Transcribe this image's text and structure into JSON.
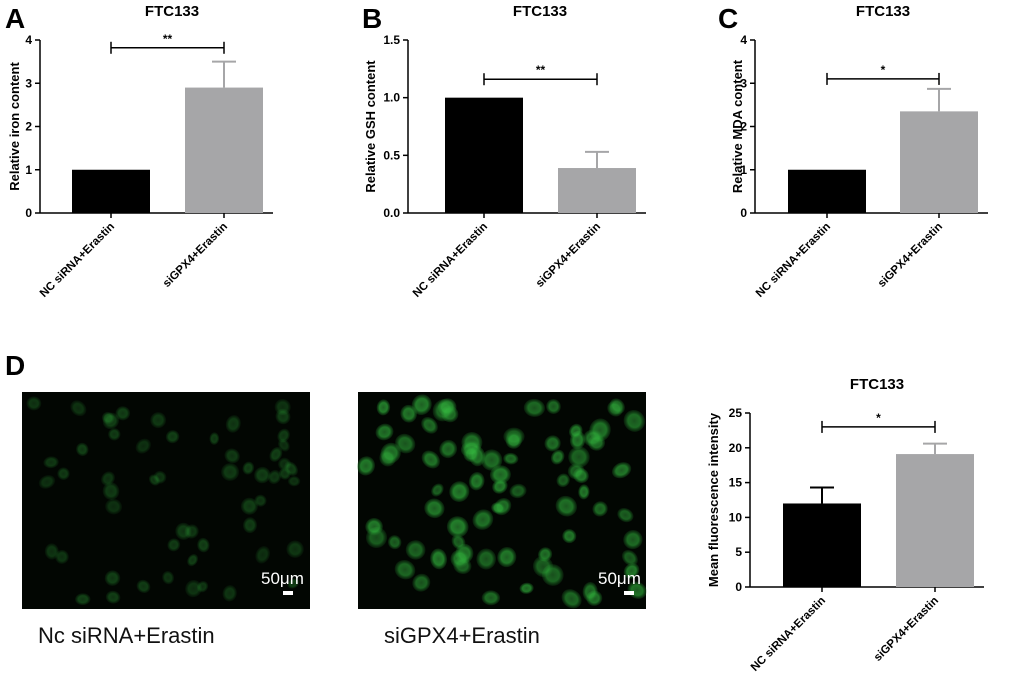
{
  "panels": [
    {
      "letter": "A"
    },
    {
      "letter": "B"
    },
    {
      "letter": "C"
    },
    {
      "letter": "D"
    }
  ],
  "micrographs": [
    {
      "caption": "Nc siRNA+Erastin",
      "scale_label": "50μm",
      "brightness": "low"
    },
    {
      "caption": "siGPX4+Erastin",
      "scale_label": "50μm",
      "brightness": "high"
    }
  ],
  "colors": {
    "nc_bar": "#000000",
    "si_bar": "#a6a6a8",
    "cell_fluorescence": "#2fae3a",
    "micrograph_background": "#020602"
  },
  "chart_data": [
    {
      "type": "bar",
      "title": "FTC133",
      "ylabel": "Relative iron content",
      "categories": [
        "NC siRNA+Erastin",
        "siGPX4+Erastin"
      ],
      "values": [
        1.0,
        2.9
      ],
      "errors": [
        0,
        0.6
      ],
      "ylim": [
        0,
        4
      ],
      "yticks": [
        "0",
        "1",
        "2",
        "3",
        "4"
      ],
      "yticks_values": [
        0,
        1,
        2,
        3,
        4
      ],
      "significance": {
        "label": "**",
        "y": 3.82
      }
    },
    {
      "type": "bar",
      "title": "FTC133",
      "ylabel": "Relative GSH content",
      "categories": [
        "NC siRNA+Erastin",
        "siGPX4+Erastin"
      ],
      "values": [
        1.0,
        0.39
      ],
      "errors": [
        0,
        0.14
      ],
      "ylim": [
        0,
        1.5
      ],
      "yticks": [
        "0.0",
        "0.5",
        "1.0",
        "1.5"
      ],
      "yticks_values": [
        0,
        0.5,
        1.0,
        1.5
      ],
      "significance": {
        "label": "**",
        "y": 1.16
      }
    },
    {
      "type": "bar",
      "title": "FTC133",
      "ylabel": "Relative MDA content",
      "categories": [
        "NC siRNA+Erastin",
        "siGPX4+Erastin"
      ],
      "values": [
        1.0,
        2.35
      ],
      "errors": [
        0,
        0.52
      ],
      "ylim": [
        0,
        4
      ],
      "yticks": [
        "0",
        "1",
        "2",
        "3",
        "4"
      ],
      "yticks_values": [
        0,
        1,
        2,
        3,
        4
      ],
      "significance": {
        "label": "*",
        "y": 3.1
      }
    },
    {
      "type": "bar",
      "title": "FTC133",
      "ylabel": "Mean fluorescence intensity",
      "categories": [
        "NC siRNA+Erastin",
        "siGPX4+Erastin"
      ],
      "values": [
        12.0,
        19.1
      ],
      "errors": [
        2.3,
        1.5
      ],
      "ylim": [
        0,
        25
      ],
      "yticks": [
        "0",
        "5",
        "10",
        "15",
        "20",
        "25"
      ],
      "yticks_values": [
        0,
        5,
        10,
        15,
        20,
        25
      ],
      "significance": {
        "label": "*",
        "y": 23.0
      }
    }
  ]
}
